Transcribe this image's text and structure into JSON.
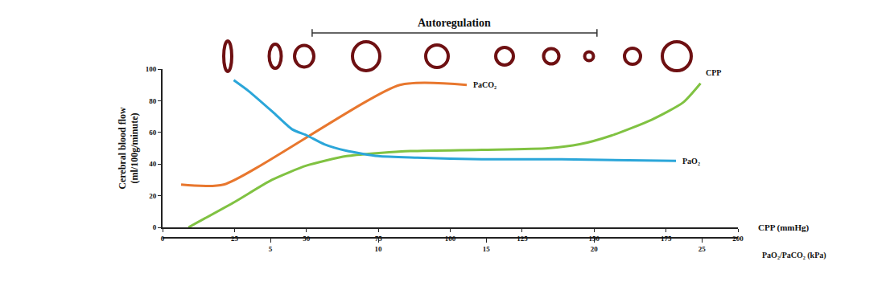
{
  "chart_data": {
    "type": "line",
    "ylabel": "Cerebral blood flow\n(ml/100g/minute)",
    "xlabel": "CPP (mmHg)",
    "x2label": "PaO₂/PaCO₂ (kPa)",
    "xlim": [
      0,
      200
    ],
    "xticks": [
      0,
      25,
      50,
      75,
      100,
      125,
      150,
      175,
      200
    ],
    "x2lim": [
      0,
      26.67
    ],
    "x2ticks": [
      5,
      10,
      15,
      20,
      25
    ],
    "ylim": [
      0,
      100
    ],
    "yticks": [
      0,
      20,
      40,
      60,
      80,
      100
    ],
    "grid": false,
    "autoregulation": {
      "text": "Autoregulation",
      "x": [
        52,
        151
      ]
    },
    "series": [
      {
        "name": "PaCO₂",
        "color": "#e8772e",
        "axis": "x2",
        "x": [
          0.86,
          2.83,
          11.0,
          14.1
        ],
        "values": [
          27,
          27,
          90,
          90
        ]
      },
      {
        "name": "PaO₂",
        "color": "#2ba6d9",
        "axis": "x2",
        "x": [
          3.3,
          4.0,
          5.1,
          6.0,
          6.7,
          7.5,
          8.5,
          10,
          11.8,
          14.8,
          18.5,
          23.8
        ],
        "values": [
          93,
          86,
          73,
          62,
          58,
          52.5,
          48.5,
          45,
          44,
          43,
          43,
          42
        ]
      },
      {
        "name": "CPP",
        "color": "#80c242",
        "axis": "x",
        "x": [
          9,
          25,
          38,
          50,
          64,
          83,
          111,
          134,
          145,
          156,
          170,
          181,
          187
        ],
        "values": [
          0,
          16,
          30,
          39,
          45,
          48,
          49,
          50,
          52.5,
          58,
          68,
          79,
          91
        ]
      }
    ]
  }
}
